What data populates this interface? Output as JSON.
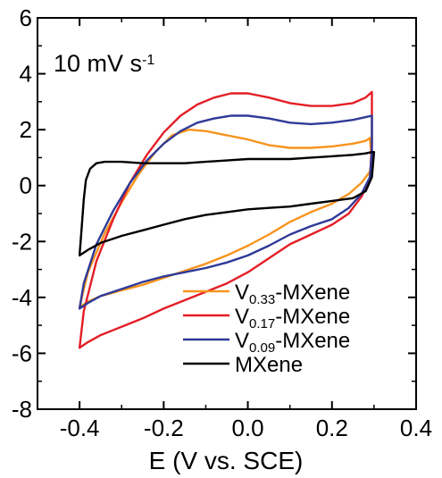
{
  "chart_data": {
    "type": "line",
    "title": "",
    "xlabel": "E (V vs. SCE)",
    "ylabel": "",
    "xlim": [
      -0.5,
      0.4
    ],
    "ylim": [
      -8,
      6
    ],
    "xticks": [
      "-0.4",
      "-0.2",
      "0.0",
      "0.2",
      "0.4"
    ],
    "yticks": [
      "-8",
      "-6",
      "-4",
      "-2",
      "0",
      "2",
      "4",
      "6"
    ],
    "annotation": {
      "main": "10 mV s",
      "sup": "-1"
    },
    "legend_position": "bottom-right",
    "grid": false,
    "series": [
      {
        "name": "V0.33-MXene",
        "label_main": "V",
        "label_sub": "0.33",
        "label_rest": "-MXene",
        "color": "#f7941d",
        "x": [
          -0.4,
          -0.38,
          -0.34,
          -0.3,
          -0.26,
          -0.22,
          -0.18,
          -0.14,
          -0.1,
          -0.05,
          0.0,
          0.05,
          0.1,
          0.15,
          0.2,
          0.25,
          0.28,
          0.29,
          0.295,
          0.29,
          0.27,
          0.24,
          0.2,
          0.15,
          0.1,
          0.05,
          0.0,
          -0.05,
          -0.1,
          -0.15,
          -0.2,
          -0.25,
          -0.3,
          -0.35,
          -0.38,
          -0.4
        ],
        "y": [
          -4.35,
          -3.1,
          -1.7,
          -0.6,
          0.4,
          1.2,
          1.8,
          2.0,
          1.95,
          1.8,
          1.65,
          1.45,
          1.35,
          1.35,
          1.4,
          1.5,
          1.6,
          1.7,
          0.9,
          0.5,
          0.1,
          -0.3,
          -0.65,
          -0.95,
          -1.3,
          -1.75,
          -2.15,
          -2.5,
          -2.8,
          -3.05,
          -3.3,
          -3.55,
          -3.75,
          -3.95,
          -4.15,
          -4.35
        ]
      },
      {
        "name": "V0.17-MXene",
        "label_main": "V",
        "label_sub": "0.17",
        "label_rest": "-MXene",
        "color": "#e41e26",
        "x": [
          -0.4,
          -0.39,
          -0.36,
          -0.32,
          -0.28,
          -0.24,
          -0.2,
          -0.16,
          -0.12,
          -0.08,
          -0.04,
          0.0,
          0.05,
          0.1,
          0.15,
          0.2,
          0.25,
          0.28,
          0.295,
          0.295,
          0.29,
          0.27,
          0.24,
          0.2,
          0.15,
          0.1,
          0.05,
          0.0,
          -0.05,
          -0.1,
          -0.15,
          -0.2,
          -0.25,
          -0.3,
          -0.35,
          -0.38,
          -0.4
        ],
        "y": [
          -5.8,
          -4.5,
          -2.7,
          -1.2,
          0.1,
          1.1,
          1.9,
          2.5,
          2.9,
          3.15,
          3.3,
          3.3,
          3.15,
          2.95,
          2.85,
          2.85,
          2.95,
          3.15,
          3.35,
          1.5,
          0.2,
          -0.4,
          -1.0,
          -1.4,
          -1.75,
          -2.1,
          -2.6,
          -3.1,
          -3.5,
          -3.8,
          -4.1,
          -4.4,
          -4.75,
          -5.05,
          -5.35,
          -5.6,
          -5.8
        ]
      },
      {
        "name": "V0.09-MXene",
        "label_main": "V",
        "label_sub": "0.09",
        "label_rest": "-MXene",
        "color": "#2e3a97",
        "x": [
          -0.4,
          -0.39,
          -0.36,
          -0.32,
          -0.28,
          -0.24,
          -0.2,
          -0.16,
          -0.12,
          -0.08,
          -0.04,
          0.0,
          0.05,
          0.1,
          0.15,
          0.2,
          0.25,
          0.28,
          0.295,
          0.295,
          0.29,
          0.27,
          0.24,
          0.2,
          0.15,
          0.1,
          0.05,
          0.0,
          -0.05,
          -0.1,
          -0.15,
          -0.2,
          -0.25,
          -0.3,
          -0.35,
          -0.38,
          -0.4
        ],
        "y": [
          -4.4,
          -3.5,
          -2.1,
          -0.9,
          0.1,
          0.9,
          1.5,
          1.95,
          2.25,
          2.4,
          2.5,
          2.5,
          2.4,
          2.25,
          2.2,
          2.25,
          2.35,
          2.45,
          2.5,
          1.2,
          0.3,
          -0.3,
          -0.8,
          -1.2,
          -1.45,
          -1.75,
          -2.15,
          -2.5,
          -2.75,
          -2.95,
          -3.1,
          -3.25,
          -3.45,
          -3.7,
          -3.95,
          -4.2,
          -4.4
        ]
      },
      {
        "name": "MXene",
        "label_main": "MXene",
        "label_sub": "",
        "label_rest": "",
        "color": "#000000",
        "x": [
          -0.4,
          -0.395,
          -0.39,
          -0.385,
          -0.375,
          -0.36,
          -0.34,
          -0.3,
          -0.25,
          -0.2,
          -0.15,
          -0.1,
          -0.05,
          0.0,
          0.05,
          0.1,
          0.15,
          0.2,
          0.25,
          0.28,
          0.295,
          0.3,
          0.295,
          0.28,
          0.25,
          0.2,
          0.15,
          0.1,
          0.05,
          0.0,
          -0.05,
          -0.1,
          -0.15,
          -0.2,
          -0.25,
          -0.3,
          -0.35,
          -0.38,
          -0.4
        ],
        "y": [
          -2.5,
          -1.5,
          -0.5,
          0.2,
          0.6,
          0.8,
          0.85,
          0.85,
          0.8,
          0.8,
          0.8,
          0.85,
          0.9,
          0.95,
          0.95,
          0.95,
          1.0,
          1.05,
          1.1,
          1.15,
          1.2,
          1.2,
          0.3,
          -0.2,
          -0.45,
          -0.55,
          -0.65,
          -0.75,
          -0.8,
          -0.85,
          -0.95,
          -1.05,
          -1.2,
          -1.4,
          -1.6,
          -1.8,
          -2.05,
          -2.3,
          -2.5
        ]
      }
    ]
  }
}
